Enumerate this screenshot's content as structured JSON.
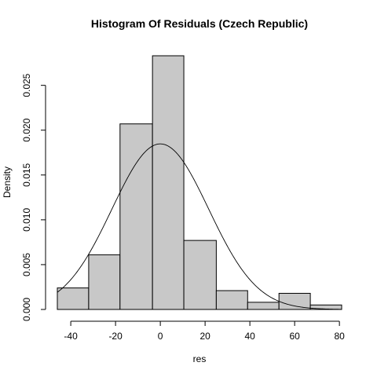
{
  "chart_data": {
    "type": "bar",
    "title": "Histogram Of Residuals (Czech Republic)",
    "xlabel": "res",
    "ylabel": "Density",
    "xlim": [
      -46,
      81
    ],
    "ylim": [
      0,
      0.0283
    ],
    "xticks": [
      -40,
      -20,
      0,
      20,
      40,
      60,
      80
    ],
    "yticks": [
      0.0,
      0.005,
      0.01,
      0.015,
      0.02,
      0.025
    ],
    "ytick_labels": [
      "0.000",
      "0.005",
      "0.010",
      "0.015",
      "0.020",
      "0.025"
    ],
    "bins": [
      {
        "x0": -46,
        "x1": -32,
        "density": 0.0024
      },
      {
        "x0": -32,
        "x1": -18,
        "density": 0.0061
      },
      {
        "x0": -18,
        "x1": -3.5,
        "density": 0.0207
      },
      {
        "x0": -3.5,
        "x1": 10.5,
        "density": 0.0283
      },
      {
        "x0": 10.5,
        "x1": 25,
        "density": 0.0077
      },
      {
        "x0": 25,
        "x1": 39,
        "density": 0.0021
      },
      {
        "x0": 39,
        "x1": 53,
        "density": 0.0008
      },
      {
        "x0": 53,
        "x1": 67,
        "density": 0.0018
      },
      {
        "x0": 67,
        "x1": 81,
        "density": 0.0005
      }
    ],
    "normal_curve": {
      "mean": 0,
      "sd": 21.6
    },
    "grid": false,
    "bar_fill": "#c8c8c8"
  }
}
